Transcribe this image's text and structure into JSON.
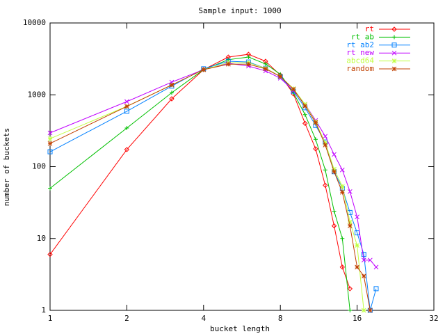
{
  "chart_data": {
    "type": "line",
    "title": "Sample input: 1000",
    "xlabel": "bucket length",
    "ylabel": "number of buckets",
    "xscale": "log2",
    "yscale": "log10",
    "grid": false,
    "legend": "top-right",
    "x": [
      1,
      2,
      3,
      4,
      5,
      6,
      7,
      8,
      9,
      10,
      11,
      12,
      13,
      14,
      15,
      16,
      17,
      18,
      19
    ],
    "xlim": [
      1,
      32
    ],
    "xticks": [
      1,
      2,
      4,
      8,
      16,
      32
    ],
    "ylim": [
      1,
      10000
    ],
    "yticks": [
      1,
      10,
      100,
      1000,
      10000
    ],
    "series": [
      {
        "name": "rt",
        "color": "#ff0000",
        "marker": "diamond",
        "values": [
          6,
          173,
          880,
          2240,
          3350,
          3660,
          2930,
          1880,
          1030,
          400,
          177,
          55,
          15,
          4,
          2,
          null,
          null,
          null,
          null
        ]
      },
      {
        "name": "rt ab",
        "color": "#00c000",
        "marker": "plus",
        "values": [
          50,
          345,
          1070,
          2240,
          3080,
          3350,
          2690,
          1930,
          1070,
          530,
          240,
          90,
          24,
          10,
          1,
          null,
          null,
          null,
          null
        ]
      },
      {
        "name": "rt ab2",
        "color": "#0080ff",
        "marker": "square",
        "values": [
          161,
          590,
          1320,
          2300,
          2930,
          2860,
          2340,
          1790,
          1120,
          660,
          375,
          220,
          85,
          50,
          23,
          12,
          6,
          1,
          2
        ]
      },
      {
        "name": "rt new",
        "color": "#c000ff",
        "marker": "cross",
        "values": [
          295,
          805,
          1500,
          2240,
          2750,
          2510,
          2150,
          1700,
          1150,
          740,
          440,
          265,
          148,
          90,
          45,
          20,
          5,
          5,
          4
        ]
      },
      {
        "name": "abcd64",
        "color": "#c0ff40",
        "marker": "star",
        "values": [
          245,
          690,
          1370,
          2240,
          2800,
          2800,
          2340,
          1800,
          1220,
          740,
          420,
          215,
          92,
          53,
          17,
          8,
          1,
          null,
          null
        ]
      },
      {
        "name": "random",
        "color": "#c04000",
        "marker": "star",
        "values": [
          210,
          690,
          1370,
          2240,
          2670,
          2670,
          2300,
          1800,
          1200,
          700,
          410,
          200,
          85,
          44,
          15,
          4,
          3,
          1,
          null
        ]
      }
    ]
  }
}
